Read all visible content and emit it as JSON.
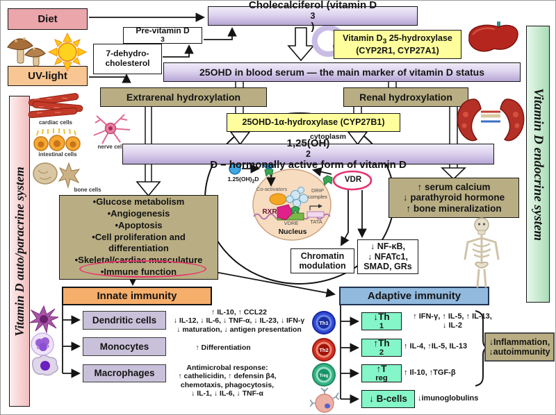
{
  "sidebars": {
    "left": "Vitamin D auto/paracrine system",
    "right": "Vitamin D endocrine system"
  },
  "sources": {
    "diet": "Diet",
    "uv": "UV-light"
  },
  "synthesis": {
    "previtamin": "Pre-vitamin D<sub>3</sub>",
    "dehydro": "7-dehydro-cholesterol",
    "cholecalciferol": "Cholecalciferol (vitamin D<sub>3</sub>)",
    "hydroxylase_name": "Vitamin D<sub>3</sub> 25-hydroxylase",
    "hydroxylase_enzymes": "(CYP2R1, CYP27A1)",
    "serum_marker": "25OHD in blood serum — the main marker of vitamin D status"
  },
  "hydroxylation": {
    "extrarenal": "Extrarenal hydroxylation",
    "renal": "Renal hydroxylation",
    "enzyme": "25OHD-1α-hydroxylase (CYP27B1)",
    "cytoplasm": "cytoplasm",
    "active_form": "1,25(OH)<sub>2</sub>D – hormonally active form of vitamin D"
  },
  "cells": {
    "cardiac": "cardiac cells",
    "nerve": "nerve cell",
    "intestinal": "intestinal cells",
    "bone": "bone cells"
  },
  "nucleus_scene": {
    "ligand": "1.25(OH)<sub>2</sub>D",
    "vdr": "VDR",
    "coactivators": "Co-activators",
    "drip": "DRIP complex",
    "rxr": "RXR",
    "vdre": "VDRE",
    "tata": "TATA",
    "nucleus": "Nucleus"
  },
  "effects": {
    "functions": [
      "•Glucose metabolism",
      "•Angiogenesis",
      "•Apoptosis",
      "•Cell proliferation and differentiation",
      "•Skeletal/cardiac musculature",
      "•Immune function"
    ],
    "bone": [
      "↑ serum calcium",
      "↓ parathyroid hormone",
      "↑ bone mineralization"
    ],
    "chromatin": "Chromatin modulation",
    "signaling": [
      "↓ NF-κB,",
      "↓ NFATc1,",
      "SMAD, GRs"
    ]
  },
  "innate": {
    "title": "Innate immunity",
    "rows": [
      {
        "label": "Dendritic cells",
        "lines": [
          "↑ IL-10, ↑ CCL22",
          "↓ IL-12, ↓ IL-6, ↓ TNF-α, ↓ IL-23, ↓ IFN-γ",
          "↓ maturation, ↓ antigen presentation"
        ]
      },
      {
        "label": "Monocytes",
        "lines": [
          "↑ Differentiation"
        ]
      },
      {
        "label": "Macrophages",
        "lines": [
          "Antimicrobal response:",
          "↑ cathelicidin, ↑ defensin β4,",
          "chemotaxis, phagocytosis,",
          "↓ IL-1, ↓ IL-6, ↓ TNF-α"
        ]
      }
    ]
  },
  "adaptive": {
    "title": "Adaptive immunity",
    "rows": [
      {
        "label": "↓Th<sub>1</sub>",
        "lines": [
          "↑ IFN-γ, ↑ IL-5, ↑ IL-13,",
          "↓ IL-2"
        ]
      },
      {
        "label": "↑Th<sub>2</sub>",
        "lines": [
          "↑ IL-4, ↑IL-5, IL-13"
        ]
      },
      {
        "label": "↑T<sub>reg</sub>",
        "lines": [
          "↑ Il-10, ↑TGF-β"
        ]
      },
      {
        "label": "↓ B-cells",
        "lines": [
          "↓imunoglobulins"
        ]
      }
    ],
    "outcome": [
      "↓Inflammation,",
      "↓autoimmunity"
    ],
    "icon_labels": [
      "Th1",
      "Th2",
      "Treg"
    ]
  },
  "colors": {
    "lavender": "#c9bce2",
    "yellow": "#feff9c",
    "tan": "#b9ae83",
    "innate_orange": "#f6ae6b",
    "adaptive_blue": "#92b9de",
    "mint": "#84f6c8",
    "annotation_red": "#e8356e",
    "endocrine_green": "#a9ddb6",
    "paracrine_pink": "#f2bdbd"
  }
}
